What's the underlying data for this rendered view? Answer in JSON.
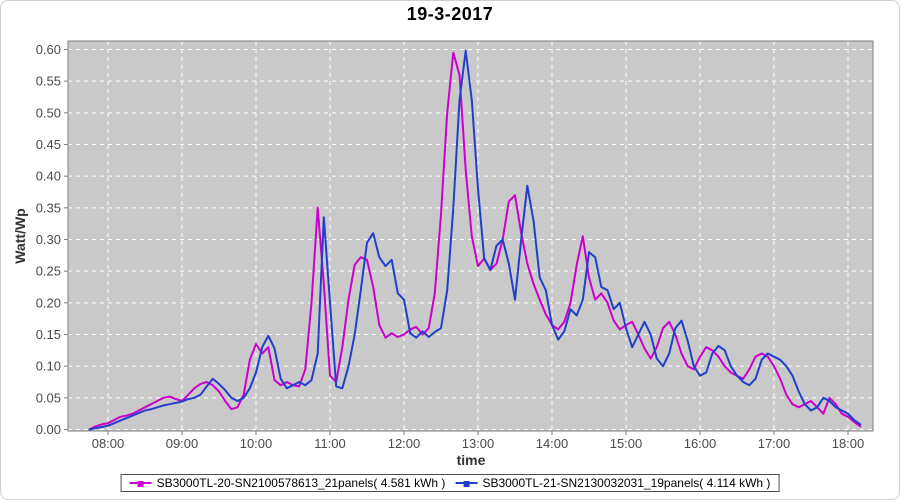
{
  "chart_data": {
    "type": "line",
    "title": "19-3-2017",
    "xlabel": "time",
    "ylabel": "Watt/Wp",
    "ylim": [
      0.0,
      0.6
    ],
    "ytick_step": 0.05,
    "yticks": [
      "0.00",
      "0.05",
      "0.10",
      "0.15",
      "0.20",
      "0.25",
      "0.30",
      "0.35",
      "0.40",
      "0.45",
      "0.50",
      "0.55",
      "0.60"
    ],
    "xticks": [
      "08:00",
      "09:00",
      "10:00",
      "11:00",
      "12:00",
      "13:00",
      "14:00",
      "15:00",
      "16:00",
      "17:00",
      "18:00"
    ],
    "grid": true,
    "grid_color": "#ffffff",
    "plot_background": "#c9c9c9",
    "legend_position": "bottom",
    "x": [
      "07:45",
      "07:50",
      "07:55",
      "08:00",
      "08:05",
      "08:10",
      "08:15",
      "08:20",
      "08:25",
      "08:30",
      "08:35",
      "08:40",
      "08:45",
      "08:50",
      "08:55",
      "09:00",
      "09:05",
      "09:10",
      "09:15",
      "09:20",
      "09:25",
      "09:30",
      "09:35",
      "09:40",
      "09:45",
      "09:50",
      "09:55",
      "10:00",
      "10:05",
      "10:10",
      "10:15",
      "10:20",
      "10:25",
      "10:30",
      "10:35",
      "10:40",
      "10:45",
      "10:50",
      "10:55",
      "11:00",
      "11:05",
      "11:10",
      "11:15",
      "11:20",
      "11:25",
      "11:30",
      "11:35",
      "11:40",
      "11:45",
      "11:50",
      "11:55",
      "12:00",
      "12:05",
      "12:10",
      "12:15",
      "12:20",
      "12:25",
      "12:30",
      "12:35",
      "12:40",
      "12:45",
      "12:50",
      "12:55",
      "13:00",
      "13:05",
      "13:10",
      "13:15",
      "13:20",
      "13:25",
      "13:30",
      "13:35",
      "13:40",
      "13:45",
      "13:50",
      "13:55",
      "14:00",
      "14:05",
      "14:10",
      "14:15",
      "14:20",
      "14:25",
      "14:30",
      "14:35",
      "14:40",
      "14:45",
      "14:50",
      "14:55",
      "15:00",
      "15:05",
      "15:10",
      "15:15",
      "15:20",
      "15:25",
      "15:30",
      "15:35",
      "15:40",
      "15:45",
      "15:50",
      "15:55",
      "16:00",
      "16:05",
      "16:10",
      "16:15",
      "16:20",
      "16:25",
      "16:30",
      "16:35",
      "16:40",
      "16:45",
      "16:50",
      "16:55",
      "17:00",
      "17:05",
      "17:10",
      "17:15",
      "17:20",
      "17:25",
      "17:30",
      "17:35",
      "17:40",
      "17:45",
      "17:50",
      "17:55",
      "18:00",
      "18:05",
      "18:10"
    ],
    "series": [
      {
        "name": "SB3000TL-20-SN2100578613_21panels( 4.581 kWh )",
        "color": "#cc00cc",
        "values": [
          0.0,
          0.005,
          0.008,
          0.01,
          0.015,
          0.02,
          0.022,
          0.025,
          0.03,
          0.035,
          0.04,
          0.045,
          0.05,
          0.052,
          0.048,
          0.045,
          0.055,
          0.065,
          0.072,
          0.075,
          0.07,
          0.06,
          0.045,
          0.032,
          0.035,
          0.055,
          0.11,
          0.135,
          0.12,
          0.13,
          0.078,
          0.07,
          0.075,
          0.07,
          0.068,
          0.095,
          0.2,
          0.35,
          0.23,
          0.085,
          0.075,
          0.13,
          0.205,
          0.26,
          0.272,
          0.268,
          0.225,
          0.165,
          0.145,
          0.152,
          0.146,
          0.15,
          0.158,
          0.162,
          0.15,
          0.16,
          0.215,
          0.34,
          0.5,
          0.595,
          0.56,
          0.41,
          0.305,
          0.258,
          0.27,
          0.252,
          0.262,
          0.3,
          0.36,
          0.37,
          0.31,
          0.262,
          0.23,
          0.205,
          0.182,
          0.165,
          0.158,
          0.17,
          0.2,
          0.26,
          0.305,
          0.24,
          0.205,
          0.215,
          0.2,
          0.172,
          0.158,
          0.165,
          0.17,
          0.15,
          0.128,
          0.112,
          0.13,
          0.16,
          0.17,
          0.15,
          0.12,
          0.1,
          0.095,
          0.115,
          0.13,
          0.125,
          0.115,
          0.1,
          0.09,
          0.085,
          0.08,
          0.095,
          0.115,
          0.12,
          0.115,
          0.1,
          0.08,
          0.055,
          0.04,
          0.035,
          0.04,
          0.045,
          0.035,
          0.025,
          0.05,
          0.04,
          0.025,
          0.02,
          0.012,
          0.005
        ]
      },
      {
        "name": "SB3000TL-21-SN2130032031_19panels( 4.114 kWh )",
        "color": "#2040cc",
        "values": [
          0.0,
          0.002,
          0.004,
          0.006,
          0.01,
          0.014,
          0.018,
          0.022,
          0.026,
          0.03,
          0.032,
          0.035,
          0.038,
          0.04,
          0.042,
          0.044,
          0.048,
          0.05,
          0.055,
          0.068,
          0.08,
          0.072,
          0.062,
          0.05,
          0.045,
          0.05,
          0.065,
          0.09,
          0.13,
          0.148,
          0.128,
          0.08,
          0.065,
          0.07,
          0.075,
          0.07,
          0.078,
          0.12,
          0.335,
          0.2,
          0.068,
          0.065,
          0.1,
          0.15,
          0.22,
          0.295,
          0.31,
          0.272,
          0.258,
          0.268,
          0.215,
          0.205,
          0.152,
          0.145,
          0.155,
          0.146,
          0.154,
          0.16,
          0.22,
          0.35,
          0.52,
          0.598,
          0.52,
          0.38,
          0.27,
          0.252,
          0.29,
          0.3,
          0.262,
          0.205,
          0.3,
          0.385,
          0.33,
          0.24,
          0.22,
          0.165,
          0.142,
          0.155,
          0.19,
          0.18,
          0.205,
          0.28,
          0.272,
          0.225,
          0.22,
          0.19,
          0.2,
          0.16,
          0.13,
          0.15,
          0.17,
          0.15,
          0.112,
          0.1,
          0.12,
          0.16,
          0.172,
          0.14,
          0.1,
          0.085,
          0.09,
          0.12,
          0.132,
          0.125,
          0.1,
          0.085,
          0.075,
          0.07,
          0.08,
          0.11,
          0.12,
          0.115,
          0.11,
          0.1,
          0.085,
          0.06,
          0.04,
          0.03,
          0.035,
          0.05,
          0.045,
          0.035,
          0.03,
          0.025,
          0.015,
          0.008
        ]
      }
    ]
  }
}
